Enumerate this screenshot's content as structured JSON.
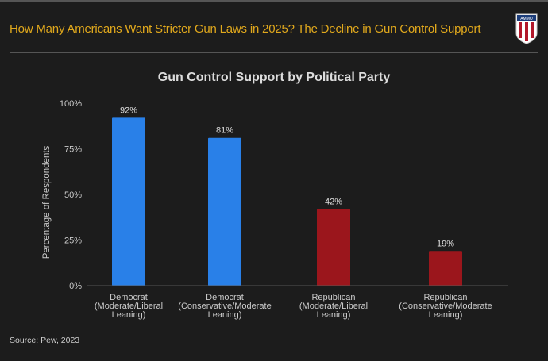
{
  "header": {
    "title": "How Many Americans Want Stricter Gun Laws in 2025? The Decline in Gun Control Support",
    "logo_text": "AMMO.COM"
  },
  "source": "Source: Pew, 2023",
  "colors": {
    "accent": "#e0a81c",
    "democrat": "#2980e8",
    "republican": "#9b161c",
    "background": "#1c1c1c"
  },
  "chart_data": {
    "type": "bar",
    "title": "Gun Control Support by Political Party",
    "ylabel": "Percentage of Respondents",
    "xlabel": "",
    "ylim": [
      0,
      100
    ],
    "yticks": [
      "0%",
      "25%",
      "50%",
      "75%",
      "100%"
    ],
    "categories": [
      [
        "Democrat",
        "(Moderate/Liberal",
        "Leaning)"
      ],
      [
        "Democrat",
        "(Conservative/Moderate",
        "Leaning)"
      ],
      [
        "Republican",
        "(Moderate/Liberal",
        "Leaning)"
      ],
      [
        "Republican",
        "(Conservative/Moderate",
        "Leaning)"
      ]
    ],
    "values": [
      92,
      81,
      42,
      19
    ],
    "data_labels": [
      "92%",
      "81%",
      "42%",
      "19%"
    ],
    "bar_colors": [
      "#2980e8",
      "#2980e8",
      "#9b161c",
      "#9b161c"
    ],
    "grid": false,
    "legend": "none"
  }
}
